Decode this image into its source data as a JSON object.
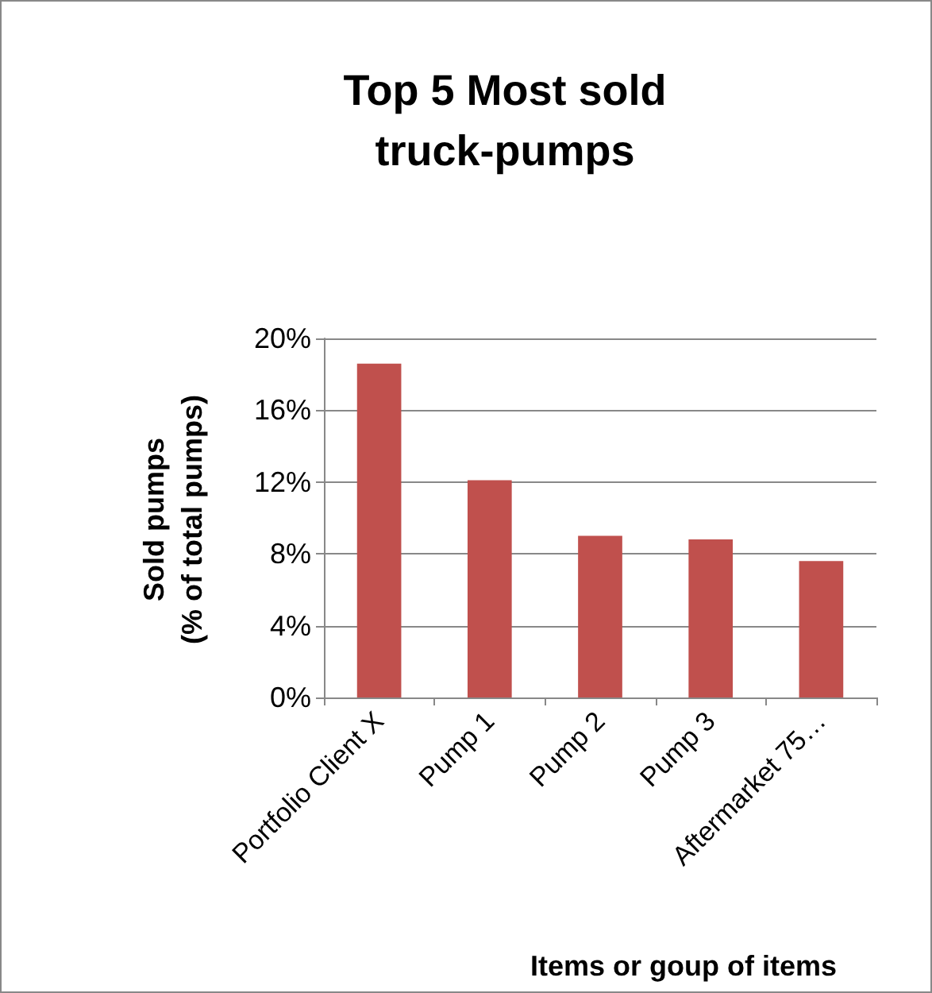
{
  "chart_data": {
    "type": "bar",
    "title": "Top 5 Most sold\ntruck-pumps",
    "xlabel": "Items or goup of items",
    "ylabel": "Sold pumps\n(% of total pumps)",
    "categories": [
      "Portfolio Client X",
      "Pump 1",
      "Pump 2",
      "Pump 3",
      "Aftermarket 75…"
    ],
    "values": [
      18.6,
      12.1,
      9.0,
      8.8,
      7.6
    ],
    "color": "#c0504d",
    "ylim": [
      0,
      20
    ],
    "yticks": [
      {
        "value": 0,
        "label": "0%"
      },
      {
        "value": 4,
        "label": "4%"
      },
      {
        "value": 8,
        "label": "8%"
      },
      {
        "value": 12,
        "label": "12%"
      },
      {
        "value": 16,
        "label": "16%"
      },
      {
        "value": 20,
        "label": "20%"
      }
    ],
    "grid": "y"
  }
}
